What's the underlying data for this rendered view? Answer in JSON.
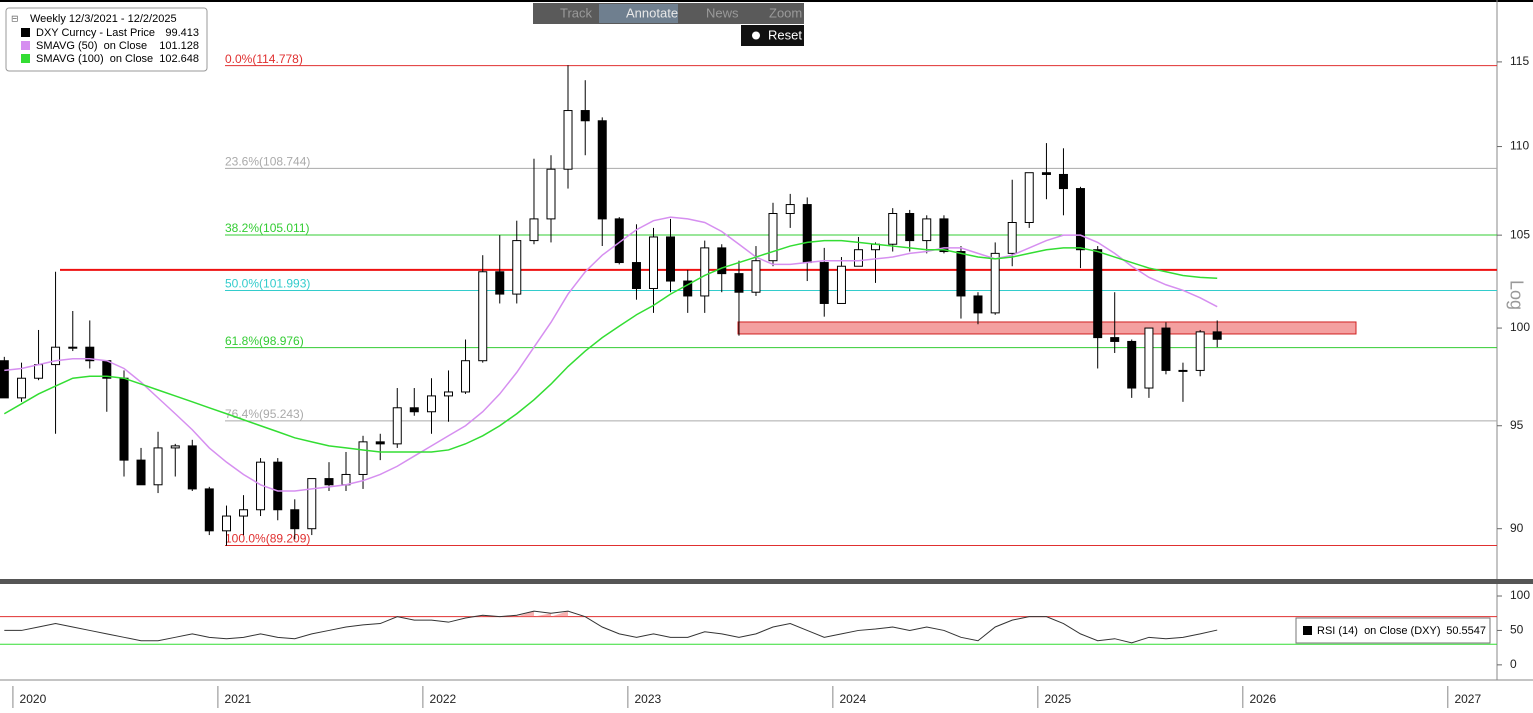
{
  "chart_data": {
    "type": "candlestick",
    "title": "Weekly 12/3/2021 - 12/2/2025",
    "price_name": "DXY Curncy - Last Price",
    "price_color": "#000000",
    "axis_label": "Log",
    "log_scale": true,
    "toolbar": [
      "Track",
      "Annotate",
      "News",
      "Zoom"
    ],
    "reset": "Reset",
    "xlim": [
      2019.937,
      2027.24
    ],
    "xticks": [
      2020,
      2021,
      2022,
      2023,
      2024,
      2025,
      2026,
      2027
    ],
    "ylim": [
      87.7,
      118.8
    ],
    "yticks": [
      90,
      95,
      100,
      105,
      110,
      115
    ],
    "x": [
      2019.958,
      2020.042,
      2020.125,
      2020.208,
      2020.292,
      2020.375,
      2020.458,
      2020.542,
      2020.625,
      2020.708,
      2020.792,
      2020.875,
      2020.958,
      2021.042,
      2021.125,
      2021.208,
      2021.292,
      2021.375,
      2021.458,
      2021.542,
      2021.625,
      2021.708,
      2021.792,
      2021.875,
      2021.958,
      2022.042,
      2022.125,
      2022.208,
      2022.292,
      2022.375,
      2022.458,
      2022.542,
      2022.625,
      2022.708,
      2022.792,
      2022.875,
      2022.958,
      2023.042,
      2023.125,
      2023.208,
      2023.292,
      2023.375,
      2023.458,
      2023.542,
      2023.625,
      2023.708,
      2023.792,
      2023.875,
      2023.958,
      2024.042,
      2024.125,
      2024.208,
      2024.292,
      2024.375,
      2024.458,
      2024.542,
      2024.625,
      2024.708,
      2024.792,
      2024.875,
      2024.958,
      2025.042,
      2025.125,
      2025.208,
      2025.292,
      2025.375,
      2025.458,
      2025.542,
      2025.625,
      2025.708,
      2025.792,
      2025.875
    ],
    "open": [
      98.3,
      96.4,
      97.4,
      98.1,
      99.0,
      99.0,
      98.3,
      97.4,
      93.3,
      92.1,
      93.9,
      94.0,
      91.9,
      89.9,
      90.6,
      90.9,
      93.2,
      90.9,
      90.0,
      92.4,
      92.1,
      92.6,
      94.2,
      94.1,
      95.9,
      95.7,
      96.5,
      96.7,
      98.3,
      103.0,
      101.8,
      104.7,
      105.9,
      108.7,
      112.1,
      111.5,
      105.9,
      103.5,
      102.1,
      104.9,
      102.5,
      101.7,
      104.3,
      102.9,
      101.9,
      103.6,
      106.2,
      106.7,
      103.5,
      101.3,
      103.3,
      104.2,
      104.5,
      106.2,
      104.7,
      105.9,
      104.1,
      101.7,
      100.8,
      104.0,
      105.7,
      108.5,
      108.4,
      107.6,
      104.2,
      99.5,
      99.3,
      96.9,
      100.0,
      97.8,
      97.8,
      99.8
    ],
    "high": [
      98.5,
      98.2,
      99.9,
      103.0,
      100.9,
      100.4,
      98.3,
      97.8,
      93.9,
      94.7,
      94.1,
      94.3,
      92.0,
      91.1,
      91.6,
      93.4,
      93.4,
      91.4,
      92.4,
      93.2,
      93.7,
      94.5,
      94.6,
      96.9,
      96.9,
      97.4,
      97.8,
      99.4,
      103.9,
      105.0,
      105.8,
      109.3,
      109.5,
      114.8,
      113.9,
      111.7,
      106.0,
      105.6,
      105.4,
      105.9,
      103.1,
      104.7,
      104.5,
      103.6,
      104.4,
      106.8,
      107.3,
      107.1,
      104.3,
      103.8,
      104.9,
      104.6,
      106.5,
      106.4,
      106.1,
      106.1,
      104.4,
      101.9,
      104.6,
      108.1,
      108.5,
      110.2,
      109.9,
      107.7,
      104.4,
      101.9,
      99.4,
      100.0,
      100.3,
      98.2,
      99.9,
      100.4
    ],
    "low": [
      96.4,
      96.2,
      97.3,
      94.6,
      98.8,
      97.9,
      95.7,
      92.5,
      92.1,
      91.7,
      92.5,
      91.8,
      89.7,
      89.2,
      89.7,
      90.6,
      90.4,
      89.5,
      89.7,
      91.8,
      91.8,
      91.9,
      93.3,
      93.9,
      95.5,
      94.6,
      95.2,
      96.6,
      98.2,
      101.3,
      101.3,
      104.5,
      104.6,
      107.6,
      109.5,
      104.4,
      103.4,
      101.5,
      100.8,
      101.9,
      100.8,
      100.8,
      101.9,
      99.6,
      101.7,
      103.3,
      105.4,
      102.5,
      100.6,
      101.3,
      103.3,
      102.4,
      104.1,
      104.1,
      104.0,
      104.0,
      100.5,
      100.2,
      100.7,
      103.3,
      105.4,
      107.0,
      106.1,
      103.2,
      97.9,
      98.7,
      96.4,
      96.4,
      97.6,
      96.2,
      97.5,
      99.0
    ],
    "close": [
      96.4,
      97.4,
      98.1,
      99.0,
      99.0,
      98.3,
      97.4,
      93.3,
      92.1,
      93.9,
      94.0,
      91.9,
      89.9,
      90.6,
      90.9,
      93.2,
      90.9,
      90.0,
      92.4,
      92.1,
      92.6,
      94.2,
      94.1,
      95.9,
      95.7,
      96.5,
      96.7,
      98.3,
      103.0,
      101.8,
      104.7,
      105.9,
      108.7,
      112.1,
      111.5,
      105.9,
      103.5,
      102.1,
      104.9,
      102.5,
      101.7,
      104.3,
      102.9,
      101.9,
      103.6,
      106.2,
      106.7,
      103.5,
      101.3,
      103.3,
      104.2,
      104.5,
      106.2,
      104.7,
      105.9,
      104.1,
      101.7,
      100.8,
      104.0,
      105.7,
      108.5,
      108.4,
      107.6,
      104.2,
      99.5,
      99.3,
      96.9,
      100.0,
      97.8,
      97.8,
      99.8,
      99.413
    ],
    "series": [
      {
        "name": "SMAVG (50)  on Close",
        "color": "#d68ff0",
        "values": [
          97.8,
          97.9,
          98.1,
          98.3,
          98.4,
          98.4,
          98.3,
          97.9,
          97.2,
          96.4,
          95.6,
          94.8,
          93.9,
          93.2,
          92.6,
          92.1,
          91.8,
          91.8,
          91.9,
          92.0,
          92.1,
          92.3,
          92.6,
          93.0,
          93.5,
          94.0,
          94.5,
          95.0,
          95.7,
          96.6,
          97.7,
          99.0,
          100.3,
          101.8,
          103.0,
          103.9,
          104.6,
          105.3,
          105.8,
          106.0,
          105.9,
          105.7,
          105.2,
          104.5,
          103.8,
          103.4,
          103.4,
          103.5,
          103.6,
          103.6,
          103.6,
          103.7,
          103.8,
          104.0,
          104.1,
          104.3,
          104.3,
          104.0,
          103.7,
          103.9,
          104.3,
          104.7,
          105.0,
          105.0,
          104.6,
          104.0,
          103.3,
          102.7,
          102.3,
          102.0,
          101.6,
          101.128
        ]
      },
      {
        "name": "SMAVG (100)  on Close",
        "color": "#33dd33",
        "values": [
          95.6,
          96.1,
          96.6,
          97.0,
          97.4,
          97.5,
          97.5,
          97.4,
          97.1,
          96.8,
          96.5,
          96.2,
          95.9,
          95.6,
          95.3,
          95.0,
          94.7,
          94.4,
          94.2,
          94.0,
          93.9,
          93.8,
          93.7,
          93.7,
          93.7,
          93.7,
          93.8,
          94.1,
          94.5,
          95.0,
          95.6,
          96.3,
          97.1,
          98.0,
          98.8,
          99.5,
          100.1,
          100.7,
          101.2,
          101.8,
          102.3,
          102.8,
          103.2,
          103.5,
          103.8,
          104.1,
          104.4,
          104.6,
          104.7,
          104.7,
          104.6,
          104.5,
          104.4,
          104.3,
          104.2,
          104.2,
          104.0,
          103.8,
          103.7,
          103.8,
          104.0,
          104.2,
          104.3,
          104.3,
          104.1,
          103.8,
          103.5,
          103.2,
          103.0,
          102.8,
          102.7,
          102.648
        ]
      }
    ],
    "fib_levels": [
      {
        "label": "0.0%(114.778)",
        "value": 114.778,
        "color": "#e03030"
      },
      {
        "label": "23.6%(108.744)",
        "value": 108.744,
        "color": "#aaaaaa"
      },
      {
        "label": "38.2%(105.011)",
        "value": 105.011,
        "color": "#33cc33"
      },
      {
        "label": "50.0%(101.993)",
        "value": 101.993,
        "color": "#33cccc"
      },
      {
        "label": "61.8%(98.976)",
        "value": 98.976,
        "color": "#33cc33"
      },
      {
        "label": "76.4%(95.243)",
        "value": 95.243,
        "color": "#aaaaaa"
      },
      {
        "label": "100.0%(89.209)",
        "value": 89.209,
        "color": "#e03030"
      }
    ],
    "resistance": {
      "value": 103.1,
      "color": "#ee1111"
    },
    "zone": {
      "low": 99.69,
      "high": 100.32,
      "color": "#f08080"
    },
    "rsi": {
      "name": "RSI (14)  on Close (DXY)",
      "color": "#333333",
      "ylim": [
        -22,
        116
      ],
      "yticks": [
        0,
        50,
        100
      ],
      "overbought": 70,
      "oversold": 30,
      "values": [
        50,
        50,
        55,
        60,
        55,
        50,
        45,
        40,
        35,
        35,
        40,
        45,
        40,
        38,
        40,
        45,
        40,
        38,
        45,
        50,
        55,
        58,
        60,
        70,
        65,
        65,
        62,
        68,
        72,
        70,
        72,
        78,
        75,
        78,
        70,
        55,
        45,
        40,
        45,
        40,
        40,
        48,
        45,
        40,
        45,
        55,
        60,
        50,
        40,
        45,
        50,
        52,
        55,
        50,
        55,
        50,
        40,
        35,
        55,
        65,
        70,
        70,
        60,
        45,
        35,
        38,
        32,
        40,
        38,
        40,
        45,
        50.5547
      ]
    }
  }
}
